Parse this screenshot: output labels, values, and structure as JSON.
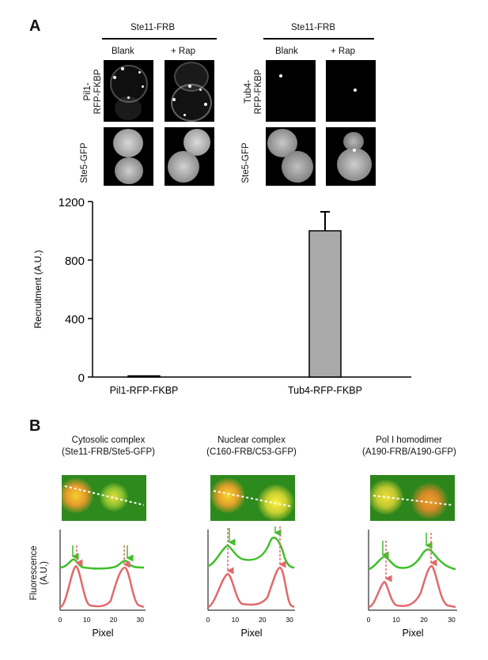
{
  "panel_a": {
    "letter": "A",
    "groups": [
      {
        "header": "Ste11-FRB",
        "cols": [
          "Blank",
          "+ Rap"
        ],
        "rows": [
          "Pil1-\nRFP-FKBP",
          "Ste5-GFP"
        ]
      },
      {
        "header": "Ste11-FRB",
        "cols": [
          "Blank",
          "+ Rap"
        ],
        "rows": [
          "Tub4-\nRFP-FKBP",
          "Ste5-GFP"
        ]
      }
    ]
  },
  "panel_b": {
    "letter": "B",
    "complexes": [
      {
        "title": "Cytosolic complex",
        "subtitle": "(Ste11-FRB/Ste5-GFP)"
      },
      {
        "title": "Nuclear complex",
        "subtitle": "(C160-FRB/C53-GFP)"
      },
      {
        "title": "Pol I homodimer",
        "subtitle": "(A190-FRB/A190-GFP)"
      }
    ],
    "ylabel": "Fluorescence\n(A.U.)",
    "xlabel": "Pixel",
    "xticks": [
      "0",
      "10",
      "20",
      "30"
    ],
    "colors": {
      "green": "#3fbf2a",
      "red": "#e06a6a"
    }
  },
  "chart_data": [
    {
      "type": "bar",
      "categories": [
        "Pil1-RFP-FKBP",
        "Tub4-RFP-FKBP"
      ],
      "values": [
        8,
        1000
      ],
      "errors": [
        0,
        130
      ],
      "ylabel": "Recruitment (A.U.)",
      "xlabel": "",
      "ylim": [
        0,
        1200
      ],
      "yticks": [
        0,
        400,
        800,
        1200
      ],
      "bar_colors": [
        "#999999",
        "#aaaaaa"
      ]
    }
  ]
}
